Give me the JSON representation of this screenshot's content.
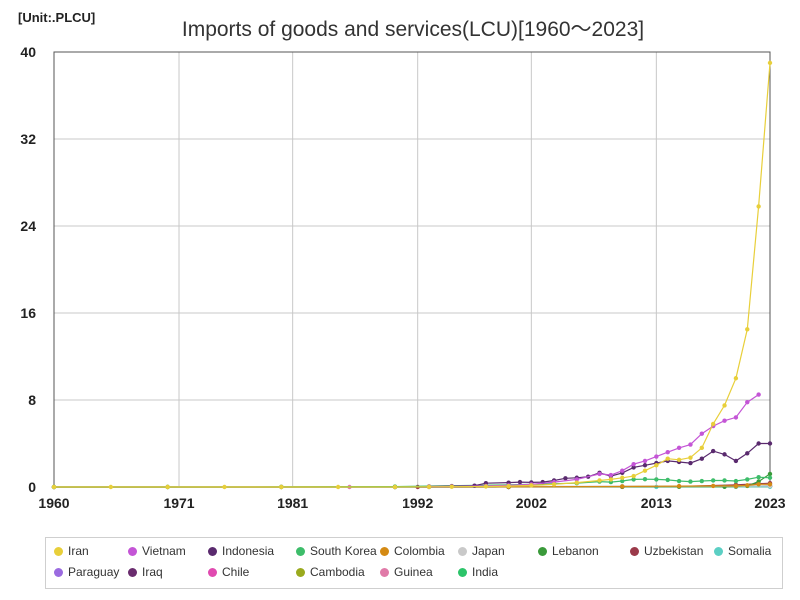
{
  "unit_label": "[Unit:.PLCU]",
  "chart_data": {
    "type": "line",
    "title": "Imports of goods and services(LCU)[1960～2023]",
    "xlabel": "",
    "ylabel": "",
    "xlim": [
      1960,
      2023
    ],
    "ylim": [
      0,
      40
    ],
    "x_ticks": [
      "1960",
      "1971",
      "1981",
      "1992",
      "2002",
      "2013",
      "2023"
    ],
    "y_ticks": [
      "0",
      "8",
      "16",
      "24",
      "32",
      "40"
    ],
    "grid": true,
    "legend_position": "bottom",
    "series": [
      {
        "name": "Iran",
        "color": "#e8cf3a",
        "x": [
          1960,
          1965,
          1970,
          1975,
          1980,
          1985,
          1990,
          1993,
          1995,
          1998,
          2000,
          2002,
          2004,
          2006,
          2008,
          2009,
          2010,
          2011,
          2012,
          2013,
          2014,
          2015,
          2016,
          2017,
          2018,
          2019,
          2020,
          2021,
          2022,
          2023
        ],
        "y": [
          0,
          0,
          0,
          0,
          0,
          0,
          0,
          0.02,
          0.03,
          0.05,
          0.08,
          0.15,
          0.25,
          0.4,
          0.6,
          0.7,
          0.85,
          1.0,
          1.5,
          2.0,
          2.6,
          2.5,
          2.7,
          3.6,
          5.8,
          7.5,
          10.0,
          14.5,
          25.8,
          39.0
        ]
      },
      {
        "name": "Vietnam",
        "color": "#c455d6",
        "x": [
          1993,
          1995,
          1998,
          2000,
          2002,
          2004,
          2006,
          2008,
          2009,
          2010,
          2011,
          2012,
          2013,
          2014,
          2015,
          2016,
          2017,
          2018,
          2019,
          2020,
          2021,
          2022
        ],
        "y": [
          0.02,
          0.05,
          0.1,
          0.15,
          0.25,
          0.45,
          0.7,
          1.2,
          1.1,
          1.5,
          2.1,
          2.4,
          2.8,
          3.2,
          3.6,
          3.9,
          4.9,
          5.6,
          6.1,
          6.4,
          7.8,
          8.5
        ]
      },
      {
        "name": "Indonesia",
        "color": "#5a2a6e",
        "x": [
          1993,
          1995,
          1997,
          1998,
          2000,
          2001,
          2002,
          2003,
          2004,
          2005,
          2006,
          2007,
          2008,
          2009,
          2010,
          2011,
          2012,
          2013,
          2014,
          2015,
          2016,
          2017,
          2018,
          2019,
          2020,
          2021,
          2022,
          2023
        ],
        "y": [
          0.05,
          0.08,
          0.12,
          0.35,
          0.4,
          0.45,
          0.42,
          0.45,
          0.6,
          0.8,
          0.85,
          0.95,
          1.3,
          1.0,
          1.3,
          1.8,
          2.0,
          2.2,
          2.4,
          2.3,
          2.2,
          2.6,
          3.3,
          3.0,
          2.4,
          3.1,
          4.0,
          4.0
        ]
      },
      {
        "name": "South Korea",
        "color": "#3dbd6a",
        "x": [
          1960,
          1970,
          1980,
          1990,
          2000,
          2004,
          2006,
          2008,
          2009,
          2010,
          2011,
          2012,
          2013,
          2014,
          2015,
          2016,
          2017,
          2018,
          2019,
          2020,
          2021,
          2022,
          2023
        ],
        "y": [
          0,
          0,
          0.01,
          0.04,
          0.2,
          0.3,
          0.35,
          0.5,
          0.45,
          0.55,
          0.7,
          0.72,
          0.7,
          0.65,
          0.55,
          0.5,
          0.55,
          0.6,
          0.6,
          0.55,
          0.7,
          0.9,
          0.85
        ]
      },
      {
        "name": "Colombia",
        "color": "#d48a14",
        "x": [
          1960,
          1970,
          1980,
          1990,
          2000,
          2010,
          2015,
          2018,
          2020,
          2021,
          2022,
          2023
        ],
        "y": [
          0,
          0,
          0,
          0.01,
          0.02,
          0.05,
          0.08,
          0.1,
          0.1,
          0.15,
          0.25,
          0.25
        ]
      },
      {
        "name": "Japan",
        "color": "#c9c9c9",
        "x": [
          1960,
          1970,
          1980,
          1990,
          2000,
          2010,
          2020,
          2023
        ],
        "y": [
          0.005,
          0.01,
          0.03,
          0.04,
          0.05,
          0.07,
          0.08,
          0.1
        ]
      },
      {
        "name": "Lebanon",
        "color": "#3a9a3a",
        "x": [
          1960,
          1990,
          2000,
          2010,
          2015,
          2019,
          2020,
          2021,
          2022,
          2023
        ],
        "y": [
          0,
          0,
          0.01,
          0.02,
          0.02,
          0.02,
          0.03,
          0.1,
          0.5,
          1.2
        ]
      },
      {
        "name": "Uzbekistan",
        "color": "#9b3a4a",
        "x": [
          1992,
          2000,
          2010,
          2015,
          2020,
          2023
        ],
        "y": [
          0,
          0.005,
          0.02,
          0.05,
          0.2,
          0.35
        ]
      },
      {
        "name": "Somalia",
        "color": "#5ccfc4",
        "x": [
          1960,
          1990,
          2013,
          2023
        ],
        "y": [
          0,
          0,
          0.01,
          0.02
        ]
      },
      {
        "name": "Paraguay",
        "color": "#9b6be0",
        "x": [
          1960,
          1990,
          2000,
          2010,
          2020,
          2023
        ],
        "y": [
          0,
          0.002,
          0.01,
          0.03,
          0.06,
          0.08
        ]
      },
      {
        "name": "Iraq",
        "color": "#6a2c6e",
        "x": [
          1960,
          1990,
          2000,
          2010,
          2020,
          2023
        ],
        "y": [
          0,
          0,
          0.005,
          0.05,
          0.07,
          0.1
        ]
      },
      {
        "name": "Chile",
        "color": "#e04ab0",
        "x": [
          1960,
          1990,
          2000,
          2010,
          2020,
          2023
        ],
        "y": [
          0,
          0.005,
          0.015,
          0.03,
          0.05,
          0.07
        ]
      },
      {
        "name": "Cambodia",
        "color": "#9aaa1e",
        "x": [
          1993,
          2000,
          2010,
          2020,
          2023
        ],
        "y": [
          0.001,
          0.005,
          0.015,
          0.04,
          0.05
        ]
      },
      {
        "name": "Guinea",
        "color": "#e07aa8",
        "x": [
          1986,
          2000,
          2010,
          2020,
          2023
        ],
        "y": [
          0,
          0.002,
          0.01,
          0.04,
          0.06
        ]
      },
      {
        "name": "India",
        "color": "#2cc46a",
        "x": [
          1960,
          1970,
          1980,
          1990,
          2000,
          2010,
          2020,
          2023
        ],
        "y": [
          0,
          0,
          0.001,
          0.005,
          0.01,
          0.03,
          0.05,
          0.07
        ]
      }
    ]
  }
}
